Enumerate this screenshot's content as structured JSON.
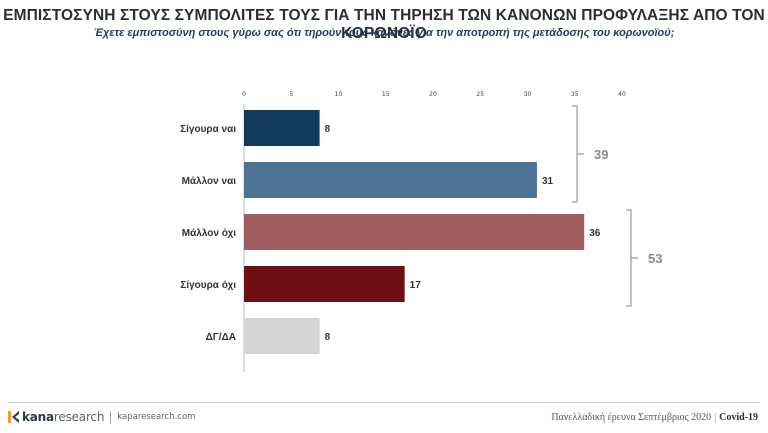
{
  "header": {
    "title": "ΕΜΠΙΣΤΟΣΥΝΗ ΣΤΟΥΣ ΣΥΜΠΟΛΙΤΕΣ ΤΟΥΣ ΓΙΑ ΤΗΝ ΤΗΡΗΣΗ ΤΩΝ ΚΑΝΟΝΩΝ ΠΡΟΦΥΛΑΞΗΣ ΑΠΟ ΤΟΝ ΚΟΡΩΝΟΪΟ",
    "subtitle": "Έχετε εμπιστοσύνη στους γύρω σας ότι τηρούν τους κανόνες για την αποτροπή της μετάδοσης του κορωνοϊού;"
  },
  "chart_data": {
    "type": "bar",
    "orientation": "horizontal",
    "categories": [
      "Σίγουρα ναι",
      "Μάλλον ναι",
      "Μάλλον όχι",
      "Σίγουρα όχι",
      "ΔΓ/ΔΑ"
    ],
    "values": [
      8,
      31,
      36,
      17,
      8
    ],
    "colors": [
      "#123a5c",
      "#4d7396",
      "#a05d60",
      "#6e0f16",
      "#d5d5d5"
    ],
    "xlim": [
      0,
      40
    ],
    "xticks": [
      0,
      5,
      10,
      15,
      20,
      25,
      30,
      35,
      40
    ],
    "grid": false,
    "groups": [
      {
        "label": "39",
        "from": 0,
        "to": 1
      },
      {
        "label": "53",
        "from": 2,
        "to": 3
      }
    ]
  },
  "footer": {
    "logo_bold": "kana",
    "logo_light": "research",
    "url": "kaparesearch.com",
    "survey": "Πανελλαδική έρευνα Σεπτέμβριος 2020",
    "tag": "Covid-19"
  }
}
